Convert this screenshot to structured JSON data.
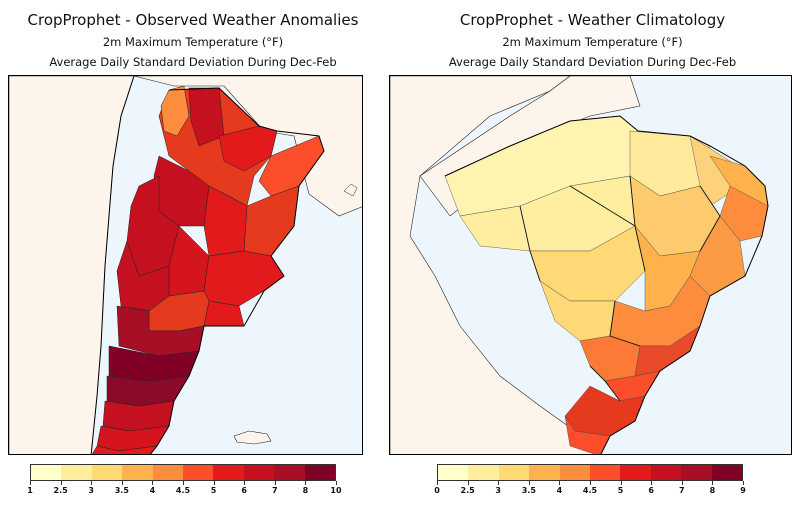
{
  "left_panel": {
    "title": "CropProphet - Observed Weather Anomalies",
    "subtitle": "2m Maximum Temperature (°F)",
    "subtitle2": "Average Daily Standard Deviation During Dec-Feb",
    "map_name": "argentina",
    "colorbar": {
      "ticks": [
        "1",
        "2.5",
        "3",
        "3.5",
        "4",
        "4.5",
        "5",
        "6",
        "7",
        "8",
        "10"
      ],
      "colors": [
        "#ffffcc",
        "#ffeda0",
        "#fed976",
        "#feb24c",
        "#fd8d3c",
        "#fc4e2a",
        "#e31a1c",
        "#c5101f",
        "#a80f26",
        "#800026"
      ]
    }
  },
  "right_panel": {
    "title": "CropProphet - Weather Climatology",
    "subtitle": "2m Maximum Temperature (°F)",
    "subtitle2": "Average Daily Standard Deviation During Dec-Feb",
    "map_name": "brazil",
    "colorbar": {
      "ticks": [
        "0",
        "2.5",
        "3",
        "3.5",
        "4",
        "4.5",
        "5",
        "6",
        "7",
        "8",
        "9"
      ],
      "colors": [
        "#ffffcc",
        "#ffeda0",
        "#fed976",
        "#feb24c",
        "#fd8d3c",
        "#fc4e2a",
        "#e31a1c",
        "#c5101f",
        "#a80f26",
        "#800026"
      ]
    }
  },
  "colors": {
    "ocean": "#eef6fd",
    "land_outside": "#fdf4ec",
    "border": "#000000"
  }
}
